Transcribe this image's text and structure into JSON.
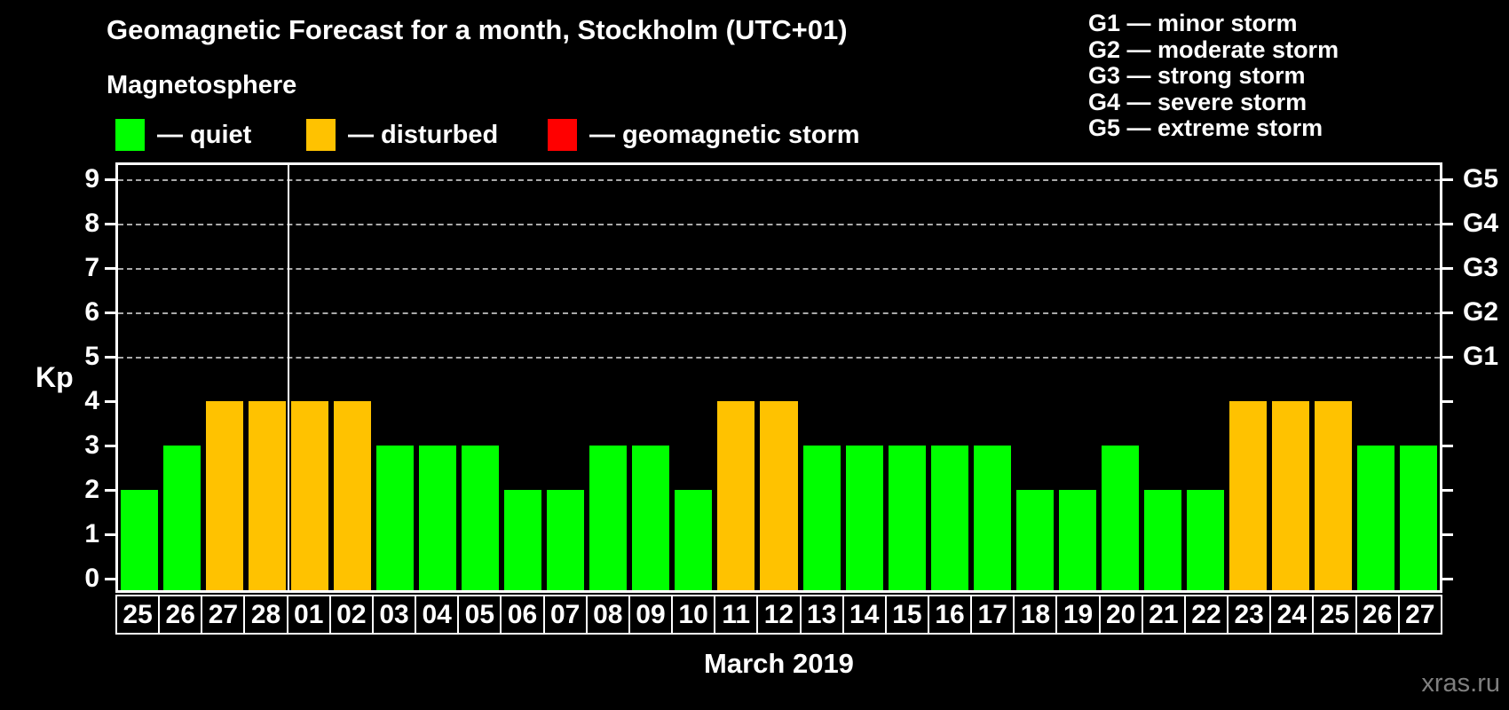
{
  "header": {
    "title": "Geomagnetic Forecast for a month, Stockholm (UTC+01)",
    "subtitle": "Magnetosphere"
  },
  "legend": {
    "items": [
      {
        "name": "quiet",
        "label": "— quiet",
        "color": "#00ff00"
      },
      {
        "name": "disturbed",
        "label": "— disturbed",
        "color": "#ffc200"
      },
      {
        "name": "geomagnetic-storm",
        "label": "— geomagnetic storm",
        "color": "#ff0000"
      }
    ]
  },
  "storm_scale": {
    "items": [
      {
        "code": "G1",
        "label": "minor storm"
      },
      {
        "code": "G2",
        "label": "moderate storm"
      },
      {
        "code": "G3",
        "label": "strong storm"
      },
      {
        "code": "G4",
        "label": "severe storm"
      },
      {
        "code": "G5",
        "label": "extreme storm"
      }
    ]
  },
  "chart_data": {
    "type": "bar",
    "title": "Geomagnetic Forecast for a month, Stockholm (UTC+01)",
    "ylabel": "Kp",
    "xlabel": "March 2019",
    "ylim": [
      0,
      9.4
    ],
    "yticks": [
      0,
      1,
      2,
      3,
      4,
      5,
      6,
      7,
      8,
      9
    ],
    "grid_levels": [
      5,
      6,
      7,
      8,
      9
    ],
    "right_axis": [
      {
        "kp": 5,
        "label": "G1"
      },
      {
        "kp": 6,
        "label": "G2"
      },
      {
        "kp": 7,
        "label": "G3"
      },
      {
        "kp": 8,
        "label": "G4"
      },
      {
        "kp": 9,
        "label": "G5"
      }
    ],
    "categories": [
      "25",
      "26",
      "27",
      "28",
      "01",
      "02",
      "03",
      "04",
      "05",
      "06",
      "07",
      "08",
      "09",
      "10",
      "11",
      "12",
      "13",
      "14",
      "15",
      "16",
      "17",
      "18",
      "19",
      "20",
      "21",
      "22",
      "23",
      "24",
      "25",
      "26",
      "27"
    ],
    "values": [
      2,
      3,
      4,
      4,
      4,
      4,
      3,
      3,
      3,
      2,
      2,
      3,
      3,
      2,
      4,
      4,
      3,
      3,
      3,
      3,
      3,
      2,
      2,
      3,
      2,
      2,
      4,
      4,
      4,
      3,
      3
    ],
    "statuses": [
      "quiet",
      "quiet",
      "disturbed",
      "disturbed",
      "disturbed",
      "disturbed",
      "quiet",
      "quiet",
      "quiet",
      "quiet",
      "quiet",
      "quiet",
      "quiet",
      "quiet",
      "disturbed",
      "disturbed",
      "quiet",
      "quiet",
      "quiet",
      "quiet",
      "quiet",
      "quiet",
      "quiet",
      "quiet",
      "quiet",
      "quiet",
      "disturbed",
      "disturbed",
      "disturbed",
      "quiet",
      "quiet"
    ],
    "month_divider_after_index": 3,
    "colors": {
      "quiet": "#00ff00",
      "disturbed": "#ffc200",
      "storm": "#ff0000"
    },
    "grid_on": true,
    "legend_position": "top-left"
  },
  "footer": {
    "caption": "March 2019",
    "watermark": "xras.ru"
  }
}
